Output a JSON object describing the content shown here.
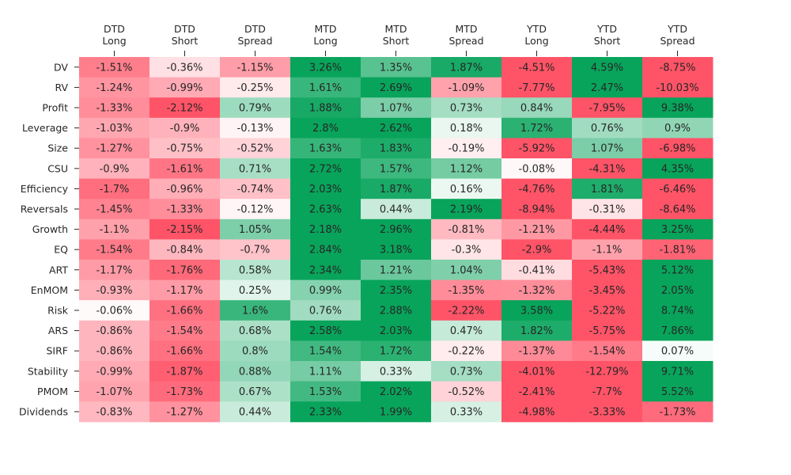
{
  "chart_data": {
    "type": "heatmap",
    "columns": [
      {
        "line1": "DTD",
        "line2": "Long"
      },
      {
        "line1": "DTD",
        "line2": "Short"
      },
      {
        "line1": "DTD",
        "line2": "Spread"
      },
      {
        "line1": "MTD",
        "line2": "Long"
      },
      {
        "line1": "MTD",
        "line2": "Short"
      },
      {
        "line1": "MTD",
        "line2": "Spread"
      },
      {
        "line1": "YTD",
        "line2": "Long"
      },
      {
        "line1": "YTD",
        "line2": "Short"
      },
      {
        "line1": "YTD",
        "line2": "Spread"
      }
    ],
    "rows": [
      "DV",
      "RV",
      "Profit",
      "Leverage",
      "Size",
      "CSU",
      "Efficiency",
      "Reversals",
      "Growth",
      "EQ",
      "ART",
      "EnMOM",
      "Risk",
      "ARS",
      "SIRF",
      "Stability",
      "PMOM",
      "Dividends"
    ],
    "values": [
      [
        -1.51,
        -0.36,
        -1.15,
        3.26,
        1.35,
        1.87,
        -4.51,
        4.59,
        -8.75
      ],
      [
        -1.24,
        -0.99,
        -0.25,
        1.61,
        2.69,
        -1.09,
        -7.77,
        2.47,
        -10.03
      ],
      [
        -1.33,
        -2.12,
        0.79,
        1.88,
        1.07,
        0.73,
        0.84,
        -7.95,
        9.38
      ],
      [
        -1.03,
        -0.9,
        -0.13,
        2.8,
        2.62,
        0.18,
        1.72,
        0.76,
        0.9
      ],
      [
        -1.27,
        -0.75,
        -0.52,
        1.63,
        1.83,
        -0.19,
        -5.92,
        1.07,
        -6.98
      ],
      [
        -0.9,
        -1.61,
        0.71,
        2.72,
        1.57,
        1.12,
        -0.08,
        -4.31,
        4.35
      ],
      [
        -1.7,
        -0.96,
        -0.74,
        2.03,
        1.87,
        0.16,
        -4.76,
        1.81,
        -6.46
      ],
      [
        -1.45,
        -1.33,
        -0.12,
        2.63,
        0.44,
        2.19,
        -8.94,
        -0.31,
        -8.64
      ],
      [
        -1.1,
        -2.15,
        1.05,
        2.18,
        2.96,
        -0.81,
        -1.21,
        -4.44,
        3.25
      ],
      [
        -1.54,
        -0.84,
        -0.7,
        2.84,
        3.18,
        -0.3,
        -2.9,
        -1.1,
        -1.81
      ],
      [
        -1.17,
        -1.76,
        0.58,
        2.34,
        1.21,
        1.04,
        -0.41,
        -5.43,
        5.12
      ],
      [
        -0.93,
        -1.17,
        0.25,
        0.99,
        2.35,
        -1.35,
        -1.32,
        -3.45,
        2.05
      ],
      [
        -0.06,
        -1.66,
        1.6,
        0.76,
        2.88,
        -2.22,
        3.58,
        -5.22,
        8.74
      ],
      [
        -0.86,
        -1.54,
        0.68,
        2.58,
        2.03,
        0.47,
        1.82,
        -5.75,
        7.86
      ],
      [
        -0.86,
        -1.66,
        0.8,
        1.54,
        1.72,
        -0.22,
        -1.37,
        -1.54,
        0.07
      ],
      [
        -0.99,
        -1.87,
        0.88,
        1.11,
        0.33,
        0.73,
        -4.01,
        -12.79,
        9.71
      ],
      [
        -1.07,
        -1.73,
        0.67,
        1.53,
        2.02,
        -0.52,
        -2.41,
        -7.7,
        5.52
      ],
      [
        -0.83,
        -1.27,
        0.44,
        2.33,
        1.99,
        0.33,
        -4.98,
        -3.33,
        -1.73
      ]
    ],
    "value_suffix": "%",
    "color_scale": {
      "negative": "#ff5467",
      "positive": "#08a45b",
      "neutral": "#ffffff",
      "saturation_limit": 2.0
    }
  }
}
